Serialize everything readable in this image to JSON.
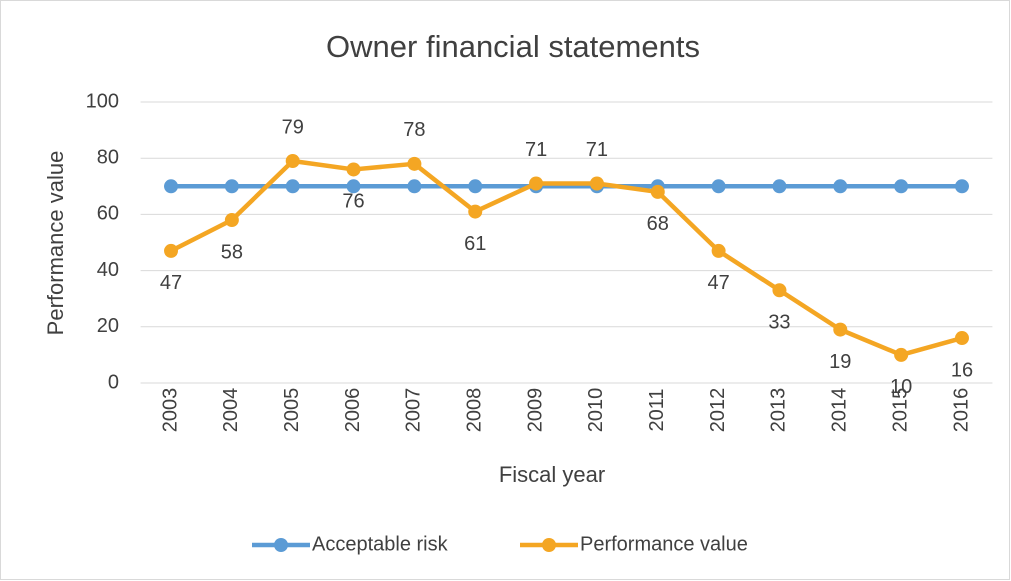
{
  "chart_data": {
    "type": "line",
    "title": "Owner financial statements",
    "x_label": "Fiscal year",
    "y_label": "Performance value",
    "categories": [
      "2003",
      "2004",
      "2005",
      "2006",
      "2007",
      "2008",
      "2009",
      "2010",
      "2011",
      "2012",
      "2013",
      "2014",
      "2015",
      "2016"
    ],
    "series": [
      {
        "name": "Acceptable risk",
        "color": "#5b9bd5",
        "values": [
          70,
          70,
          70,
          70,
          70,
          70,
          70,
          70,
          70,
          70,
          70,
          70,
          70,
          70
        ]
      },
      {
        "name": "Performance value",
        "color": "#f4a623",
        "values": [
          47,
          58,
          79,
          76,
          78,
          61,
          71,
          71,
          68,
          47,
          33,
          19,
          10,
          16
        ],
        "data_labels": true
      }
    ],
    "ylim": [
      0,
      100
    ],
    "yticks": [
      0,
      20,
      40,
      60,
      80,
      100
    ],
    "grid": true,
    "legend": "bottom"
  }
}
